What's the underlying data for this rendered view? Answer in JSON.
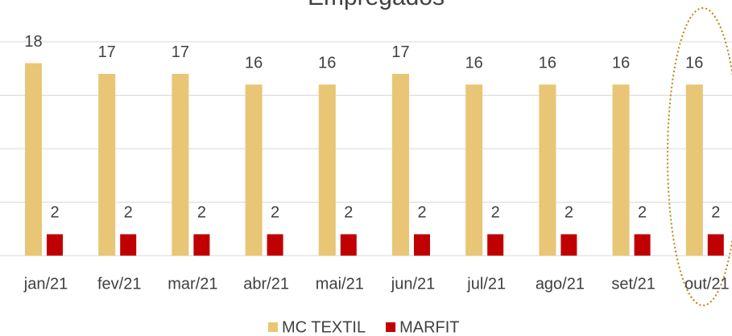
{
  "chart_data": {
    "type": "bar",
    "title": "Empregados",
    "categories": [
      "jan/21",
      "fev/21",
      "mar/21",
      "abr/21",
      "mai/21",
      "jun/21",
      "jul/21",
      "ago/21",
      "set/21",
      "out/21"
    ],
    "series": [
      {
        "name": "MC TEXTIL",
        "color": "#e8c675",
        "values": [
          18,
          17,
          17,
          16,
          16,
          17,
          16,
          16,
          16,
          16
        ]
      },
      {
        "name": "MARFIT",
        "color": "#c00000",
        "values": [
          2,
          2,
          2,
          2,
          2,
          2,
          2,
          2,
          2,
          2
        ]
      }
    ],
    "ylim": [
      0,
      20
    ],
    "yticks": [
      0,
      5,
      10,
      15,
      20
    ],
    "grid": true,
    "legend": "bottom"
  }
}
